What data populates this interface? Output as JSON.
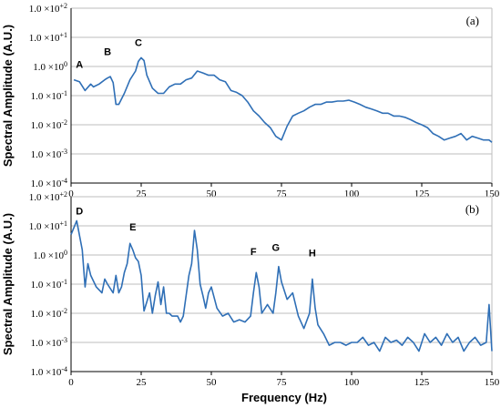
{
  "chart_data": [
    {
      "type": "line",
      "panel_label": "(a)",
      "xlabel": "",
      "ylabel": "Spectral Amplitude (A.U.)",
      "xlim": [
        0,
        150
      ],
      "ylim_log10": [
        -4,
        2
      ],
      "y_scale": "log",
      "x_ticks": [
        "0",
        "25",
        "50",
        "75",
        "100",
        "125",
        "150"
      ],
      "y_ticks": [
        "1.0 ×10^-4",
        "1.0 ×10^-3",
        "1.0 ×10^-2",
        "1.0 ×10^-1",
        "1.0 ×10^0",
        "1.0 ×10^+1",
        "1.0 ×10^+2"
      ],
      "color": "#2f6fb6",
      "annotations": [
        {
          "label": "A",
          "x": 3,
          "y": 0.9
        },
        {
          "label": "B",
          "x": 13,
          "y": 2.5
        },
        {
          "label": "C",
          "x": 24,
          "y": 5
        }
      ],
      "series": [
        {
          "x": [
            1,
            3,
            5,
            7,
            8,
            10,
            12,
            13,
            14,
            15,
            16,
            17,
            19,
            21,
            23,
            24,
            25,
            26,
            27,
            29,
            31,
            33,
            35,
            37,
            39,
            41,
            43,
            45,
            47,
            49,
            51,
            53,
            55,
            57,
            59,
            61,
            63,
            65,
            67,
            69,
            71,
            73,
            75,
            77,
            79,
            81,
            83,
            85,
            87,
            89,
            91,
            93,
            95,
            97,
            99,
            101,
            103,
            105,
            107,
            109,
            111,
            113,
            115,
            117,
            119,
            121,
            123,
            125,
            127,
            129,
            131,
            133,
            135,
            137,
            139,
            141,
            143,
            145,
            147,
            149,
            150
          ],
          "y": [
            0.35,
            0.3,
            0.15,
            0.25,
            0.2,
            0.25,
            0.35,
            0.4,
            0.45,
            0.28,
            0.05,
            0.05,
            0.12,
            0.35,
            0.7,
            1.5,
            2.0,
            1.6,
            0.5,
            0.18,
            0.12,
            0.12,
            0.2,
            0.25,
            0.25,
            0.35,
            0.4,
            0.7,
            0.6,
            0.5,
            0.5,
            0.35,
            0.3,
            0.15,
            0.13,
            0.1,
            0.06,
            0.03,
            0.02,
            0.012,
            0.008,
            0.004,
            0.003,
            0.009,
            0.02,
            0.025,
            0.03,
            0.04,
            0.05,
            0.05,
            0.06,
            0.06,
            0.065,
            0.065,
            0.07,
            0.06,
            0.05,
            0.04,
            0.035,
            0.03,
            0.025,
            0.025,
            0.02,
            0.02,
            0.018,
            0.015,
            0.012,
            0.01,
            0.008,
            0.005,
            0.004,
            0.003,
            0.0035,
            0.004,
            0.005,
            0.003,
            0.004,
            0.0035,
            0.003,
            0.003,
            0.0025
          ]
        }
      ]
    },
    {
      "type": "line",
      "panel_label": "(b)",
      "xlabel": "Frequency (Hz)",
      "ylabel": "Spectral Amplitude (A.U.)",
      "xlim": [
        0,
        150
      ],
      "ylim_log10": [
        -4,
        2
      ],
      "y_scale": "log",
      "x_ticks": [
        "0",
        "25",
        "50",
        "75",
        "100",
        "125",
        "150"
      ],
      "y_ticks": [
        "1.0 ×10^-4",
        "1.0 ×10^-3",
        "1.0 ×10^-2",
        "1.0 ×10^-1",
        "1.0 ×10^0",
        "1.0 ×10^+1",
        "1.0 ×10^+2"
      ],
      "color": "#2f6fb6",
      "annotations": [
        {
          "label": "D",
          "x": 3,
          "y": 25
        },
        {
          "label": "E",
          "x": 22,
          "y": 7
        },
        {
          "label": "F",
          "x": 65,
          "y": 1
        },
        {
          "label": "G",
          "x": 73,
          "y": 1.4
        },
        {
          "label": "H",
          "x": 86,
          "y": 0.9
        }
      ],
      "series": [
        {
          "x": [
            0,
            2,
            4,
            5,
            6,
            7,
            9,
            11,
            12,
            13,
            15,
            16,
            17,
            18,
            19,
            20,
            21,
            22,
            23,
            24,
            25,
            26,
            28,
            29,
            30,
            31,
            32,
            33,
            34,
            35,
            36,
            37,
            38,
            39,
            40,
            41,
            42,
            43,
            44,
            45,
            46,
            47,
            48,
            49,
            50,
            52,
            54,
            56,
            58,
            60,
            62,
            64,
            65,
            66,
            67,
            68,
            70,
            72,
            73,
            74,
            75,
            77,
            79,
            81,
            83,
            85,
            86,
            87,
            88,
            90,
            92,
            94,
            96,
            98,
            100,
            102,
            104,
            106,
            108,
            110,
            112,
            114,
            116,
            118,
            120,
            122,
            124,
            126,
            128,
            130,
            132,
            134,
            136,
            138,
            140,
            142,
            144,
            146,
            148,
            149,
            150
          ],
          "y": [
            5,
            15,
            1.5,
            0.08,
            0.5,
            0.2,
            0.08,
            0.05,
            0.15,
            0.1,
            0.05,
            0.2,
            0.05,
            0.08,
            0.25,
            0.5,
            2.5,
            1.5,
            0.8,
            0.6,
            0.2,
            0.012,
            0.05,
            0.01,
            0.04,
            0.12,
            0.02,
            0.08,
            0.01,
            0.01,
            0.008,
            0.008,
            0.008,
            0.005,
            0.008,
            0.04,
            0.2,
            0.5,
            7,
            1.5,
            0.1,
            0.04,
            0.015,
            0.05,
            0.08,
            0.015,
            0.008,
            0.01,
            0.005,
            0.006,
            0.005,
            0.008,
            0.05,
            0.25,
            0.08,
            0.01,
            0.02,
            0.01,
            0.05,
            0.4,
            0.12,
            0.03,
            0.05,
            0.008,
            0.003,
            0.01,
            0.15,
            0.015,
            0.004,
            0.002,
            0.0008,
            0.001,
            0.001,
            0.0008,
            0.001,
            0.001,
            0.0015,
            0.0008,
            0.001,
            0.0005,
            0.0015,
            0.001,
            0.0012,
            0.0008,
            0.0015,
            0.001,
            0.0005,
            0.002,
            0.001,
            0.0015,
            0.0008,
            0.002,
            0.001,
            0.0015,
            0.0005,
            0.001,
            0.0015,
            0.0008,
            0.001,
            0.02,
            0.0005
          ]
        }
      ]
    }
  ]
}
